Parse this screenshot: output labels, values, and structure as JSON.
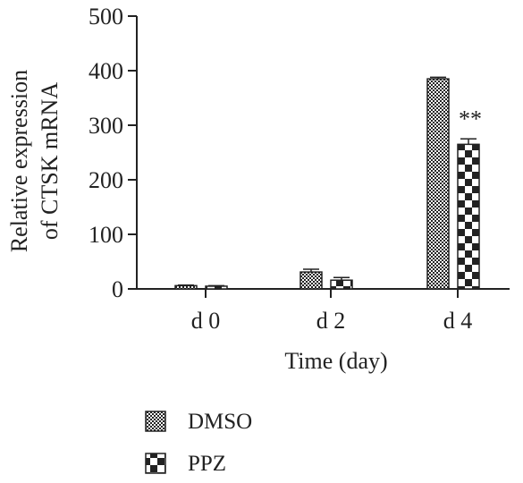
{
  "chart_data": {
    "type": "bar",
    "categories": [
      "d 0",
      "d 2",
      "d 4"
    ],
    "series": [
      {
        "name": "DMSO",
        "values": [
          6,
          31,
          385
        ],
        "errors": [
          1,
          5,
          3
        ],
        "pattern": "fine-checker",
        "annotation": ""
      },
      {
        "name": "PPZ",
        "values": [
          5,
          16,
          265
        ],
        "errors": [
          1,
          5,
          10
        ],
        "pattern": "coarse-checker",
        "annotation": "**"
      }
    ],
    "ylabel_lines": [
      "Relative expression",
      "of CTSK mRNA"
    ],
    "xlabel": "Time (day)",
    "yticks": [
      0,
      100,
      200,
      300,
      400,
      500
    ],
    "ylim": [
      0,
      500
    ],
    "grid": false,
    "legend_position": "bottom-center",
    "colors": {
      "ink": "#222222",
      "fill": "#ffffff"
    }
  }
}
